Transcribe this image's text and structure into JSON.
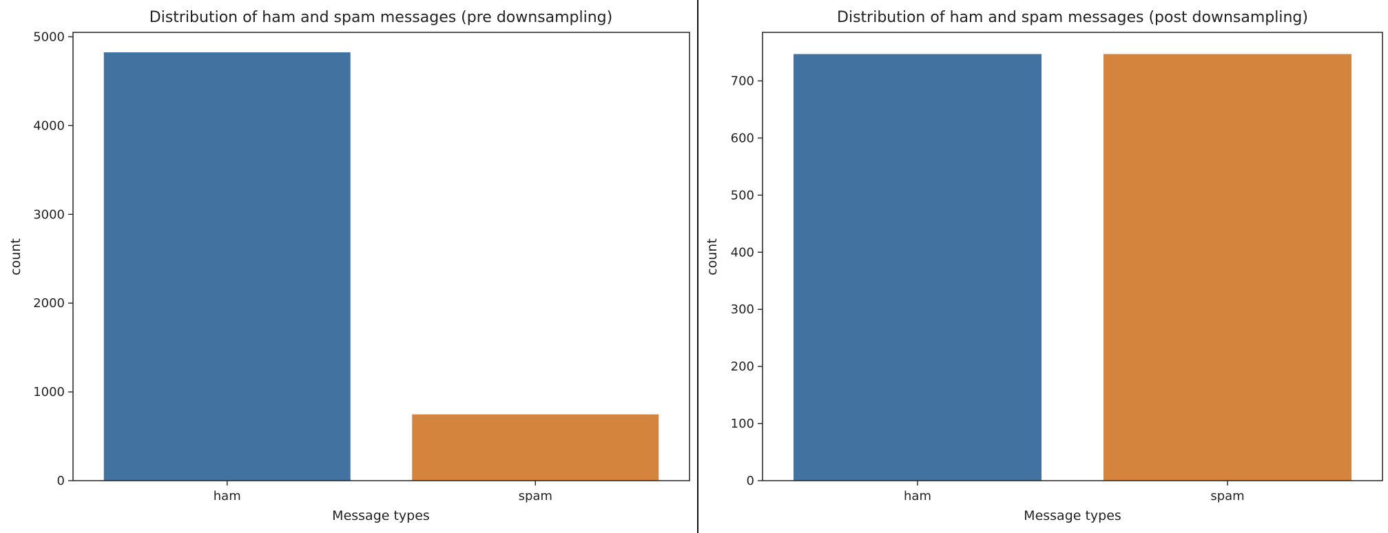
{
  "chart_data": [
    {
      "type": "bar",
      "title": "Distribution of ham and spam messages (pre downsampling)",
      "xlabel": "Message types",
      "ylabel": "count",
      "categories": [
        "ham",
        "spam"
      ],
      "values": [
        4825,
        747
      ],
      "colors": [
        "#4272a0",
        "#d5843e"
      ],
      "ylim": [
        0,
        5050
      ],
      "yticks": [
        0,
        1000,
        2000,
        3000,
        4000,
        5000
      ],
      "ytick_labels": [
        "0",
        "1000",
        "2000",
        "3000",
        "4000",
        "5000"
      ],
      "grid": false,
      "legend": "none"
    },
    {
      "type": "bar",
      "title": "Distribution of ham and spam messages (post downsampling)",
      "xlabel": "Message types",
      "ylabel": "count",
      "categories": [
        "ham",
        "spam"
      ],
      "values": [
        747,
        747
      ],
      "colors": [
        "#4272a0",
        "#d5843e"
      ],
      "ylim": [
        0,
        785
      ],
      "yticks": [
        0,
        100,
        200,
        300,
        400,
        500,
        600,
        700
      ],
      "ytick_labels": [
        "0",
        "100",
        "200",
        "300",
        "400",
        "500",
        "600",
        "700"
      ],
      "grid": false,
      "legend": "none"
    }
  ]
}
